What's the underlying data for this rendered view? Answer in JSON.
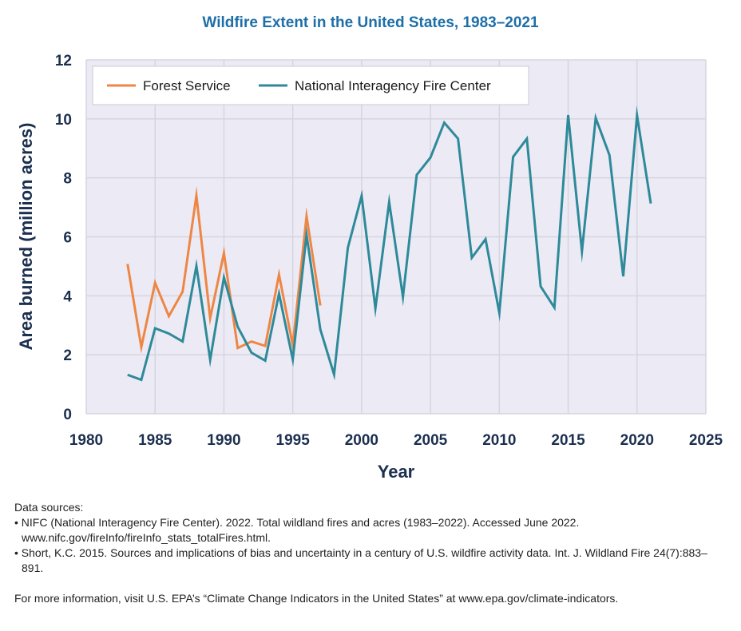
{
  "title": "Wildfire Extent in the United States, 1983–2021",
  "chart_data": {
    "type": "line",
    "title": "Wildfire Extent in the United States, 1983–2021",
    "xlabel": "Year",
    "ylabel": "Area burned (million acres)",
    "xlim": [
      1980,
      2025
    ],
    "ylim": [
      0,
      12
    ],
    "xticks": [
      1980,
      1985,
      1990,
      1995,
      2000,
      2005,
      2010,
      2015,
      2020,
      2025
    ],
    "yticks": [
      0,
      2,
      4,
      6,
      8,
      10,
      12
    ],
    "grid": true,
    "legend_position": "top-left",
    "series": [
      {
        "name": "Forest Service",
        "color": "#ee8644",
        "x": [
          1983,
          1984,
          1985,
          1986,
          1987,
          1988,
          1989,
          1990,
          1991,
          1992,
          1993,
          1994,
          1995,
          1996,
          1997
        ],
        "y": [
          5.08,
          2.26,
          4.44,
          3.31,
          4.14,
          7.4,
          3.24,
          5.45,
          2.23,
          2.45,
          2.3,
          4.72,
          2.32,
          6.7,
          3.67
        ]
      },
      {
        "name": "National Interagency Fire Center",
        "color": "#2e8a99",
        "x": [
          1983,
          1984,
          1985,
          1986,
          1987,
          1988,
          1989,
          1990,
          1991,
          1992,
          1993,
          1994,
          1995,
          1996,
          1997,
          1998,
          1999,
          2000,
          2001,
          2002,
          2003,
          2004,
          2005,
          2006,
          2007,
          2008,
          2009,
          2010,
          2011,
          2012,
          2013,
          2014,
          2015,
          2016,
          2017,
          2018,
          2019,
          2020,
          2021
        ],
        "y": [
          1.32,
          1.15,
          2.9,
          2.72,
          2.45,
          5.01,
          1.83,
          4.62,
          2.95,
          2.07,
          1.8,
          4.07,
          1.84,
          6.07,
          2.86,
          1.33,
          5.63,
          7.39,
          3.57,
          7.18,
          3.96,
          8.1,
          8.69,
          9.87,
          9.33,
          5.29,
          5.92,
          3.42,
          8.71,
          9.33,
          4.32,
          3.6,
          10.13,
          5.51,
          10.03,
          8.77,
          4.66,
          10.12,
          7.13
        ]
      }
    ]
  },
  "notes": {
    "heading": "Data sources:",
    "sources": [
      "• NIFC (National Interagency Fire Center). 2022. Total wildland fires and acres (1983–2022). Accessed June 2022. www.nifc.gov/fireInfo/fireInfo_stats_totalFires.html.",
      "• Short, K.C. 2015. Sources and implications of bias and uncertainty in a century of U.S. wildfire activity data. Int. J. Wildland Fire 24(7):883–891."
    ],
    "more_info": "For more information, visit U.S. EPA’s “Climate Change Indicators in the United States” at www.epa.gov/climate-indicators."
  },
  "colors": {
    "title": "#1d6fa8",
    "axis_text": "#1b2f4f",
    "plot_bg": "#ecebf5",
    "grid": "#d6d5df"
  }
}
